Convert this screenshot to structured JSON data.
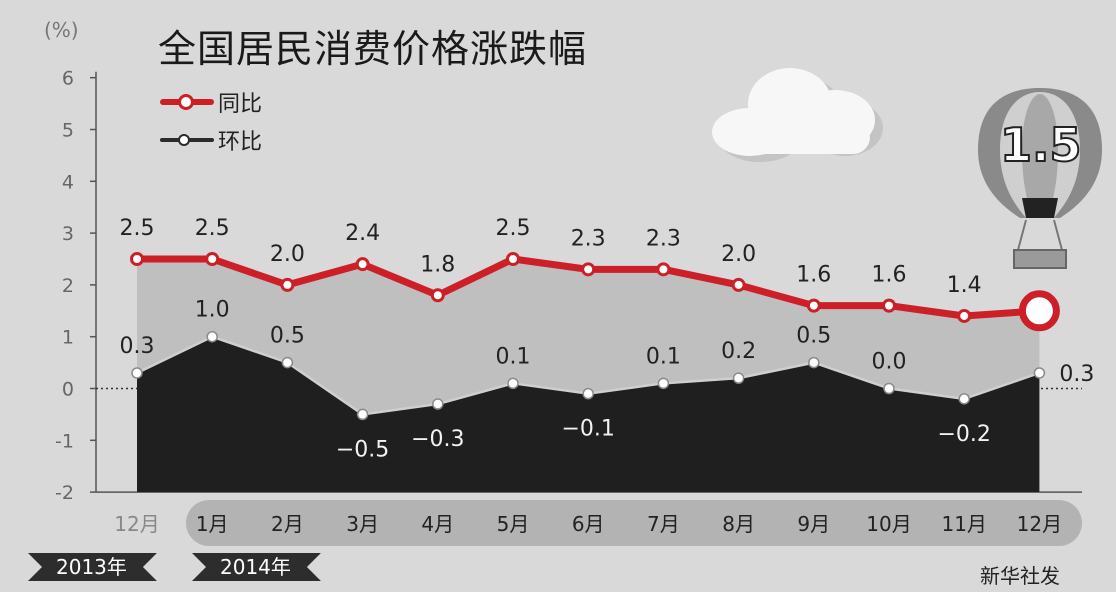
{
  "title": "全国居民消费价格涨跌幅",
  "unit": "(%)",
  "source": "新华社发",
  "years": {
    "y2013": "2013年",
    "y2014": "2014年"
  },
  "balloon_label": "1.5",
  "legend": [
    {
      "label": "同比",
      "color": "#cc1f27"
    },
    {
      "label": "环比",
      "color": "#2b2b2b"
    }
  ],
  "colors": {
    "yoy_area": "#bfbfbf",
    "mom_area": "#1f1f1f",
    "grid_axis": "#555555"
  },
  "chart_data": {
    "type": "line",
    "title": "全国居民消费价格涨跌幅",
    "ylabel": "(%)",
    "ylim": [
      -2,
      6
    ],
    "yticks": [
      -2,
      -1,
      0,
      1,
      2,
      3,
      4,
      5,
      6
    ],
    "ytick_labels": [
      "-2",
      "-1",
      "0",
      "1",
      "2",
      "3",
      "4",
      "5",
      "6"
    ],
    "categories": [
      "12月",
      "1月",
      "2月",
      "3月",
      "4月",
      "5月",
      "6月",
      "7月",
      "8月",
      "9月",
      "10月",
      "11月",
      "12月"
    ],
    "legend_position": "top-left",
    "series": [
      {
        "name": "同比",
        "values": [
          2.5,
          2.5,
          2.0,
          2.4,
          1.8,
          2.5,
          2.3,
          2.3,
          2.0,
          1.6,
          1.6,
          1.4,
          1.5
        ],
        "labels": [
          "2.5",
          "2.5",
          "2.0",
          "2.4",
          "1.8",
          "2.5",
          "2.3",
          "2.3",
          "2.0",
          "1.6",
          "1.6",
          "1.4",
          ""
        ]
      },
      {
        "name": "环比",
        "values": [
          0.3,
          1.0,
          0.5,
          -0.5,
          -0.3,
          0.1,
          -0.1,
          0.1,
          0.2,
          0.5,
          0.0,
          -0.2,
          0.3
        ],
        "labels": [
          "0.3",
          "1.0",
          "0.5",
          "-0.5",
          "-0.3",
          "0.1",
          "-0.1",
          "0.1",
          "0.2",
          "0.5",
          "0.0",
          "-0.2",
          "0.3"
        ]
      }
    ]
  }
}
